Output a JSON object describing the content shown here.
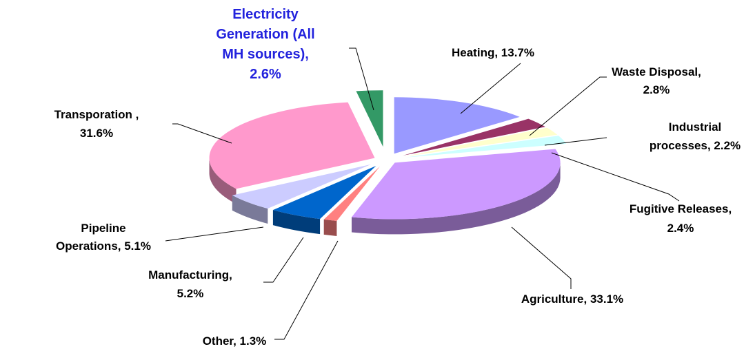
{
  "chart_data": {
    "type": "pie",
    "values": [
      13.7,
      2.8,
      2.2,
      2.4,
      33.1,
      1.3,
      5.2,
      5.1,
      31.6,
      2.6
    ],
    "value_labels": [
      "Heating, 13.7%",
      "Waste Disposal,\n2.8%",
      "Industrial\nprocesses, 2.2%",
      "Fugitive Releases,\n2.4%",
      "Agriculture, 33.1%",
      "Other, 1.3%",
      "Manufacturing,\n5.2%",
      "Pipeline\nOperations, 5.1%",
      "Transporation ,\n31.6%",
      "Electricity\nGeneration (All\nMH sources),\n2.6%"
    ],
    "colors": [
      "#9999ff",
      "#993366",
      "#ffffcc",
      "#ccffff",
      "#cc99ff",
      "#ff8080",
      "#0066cc",
      "#ccccff",
      "#ff99cc",
      "#339966"
    ]
  }
}
